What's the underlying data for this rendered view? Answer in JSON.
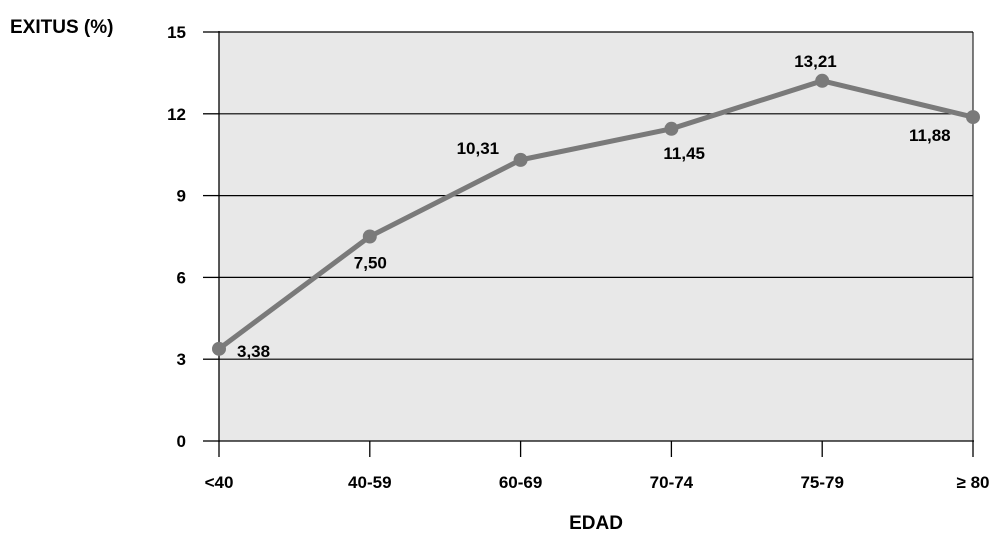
{
  "chart_data": {
    "type": "line",
    "ylabel": "EXITUS (%)",
    "xlabel": "EDAD",
    "categories": [
      "<40",
      "40-59",
      "60-69",
      "70-74",
      "75-79",
      "≥ 80"
    ],
    "values": [
      3.38,
      7.5,
      10.31,
      11.45,
      13.21,
      11.88
    ],
    "data_labels": [
      "3,38",
      "7,50",
      "10,31",
      "11,45",
      "13,21",
      "11,88"
    ],
    "ylim": [
      0,
      15
    ],
    "yticks": [
      0,
      3,
      6,
      9,
      12,
      15
    ],
    "ytick_labels": [
      "0",
      "3",
      "6",
      "9",
      "12",
      "15"
    ],
    "grid": true,
    "plot_background": "#e8e8e8",
    "line_color": "#7a7a7a",
    "marker_color": "#7a7a7a"
  }
}
